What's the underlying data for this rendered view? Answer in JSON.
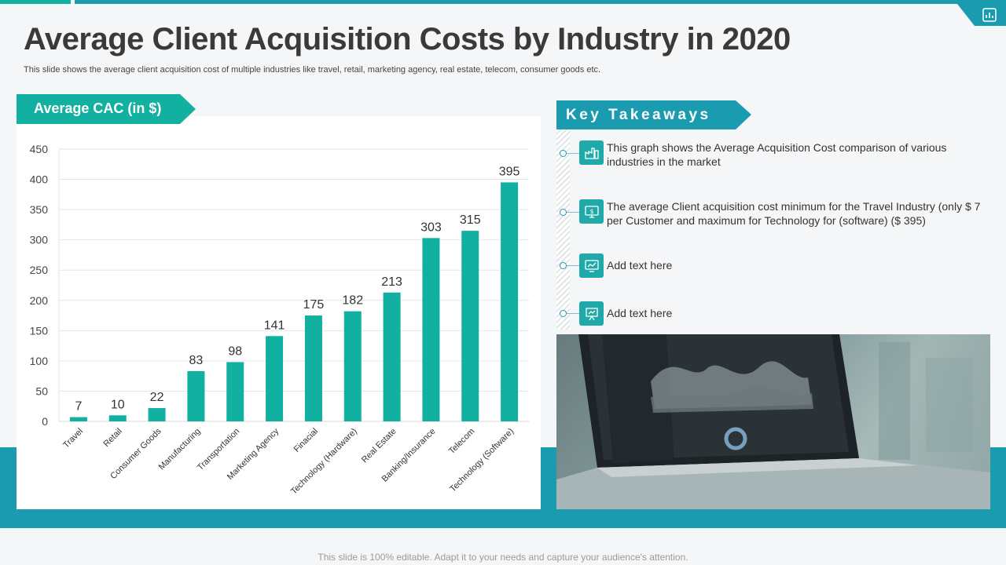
{
  "page": {
    "title": "Average Client Acquisition Costs by Industry in 2020",
    "subtitle": "This slide shows the average client acquisition cost of multiple industries like travel, retail, marketing agency, real estate, telecom, consumer goods etc.",
    "footer": "This slide is 100% editable. Adapt it to your needs and capture your audience's attention."
  },
  "chart_tag": "Average CAC (in $)",
  "chart_data": {
    "type": "bar",
    "categories": [
      "Travel",
      "Retail",
      "Consumer Goods",
      "Manufacturing",
      "Transportation",
      "Marketing Agency",
      "Finacial",
      "Technology (Hardware)",
      "Real Estate",
      "Banking/Insurance",
      "Telecom",
      "Technology (Software)"
    ],
    "values": [
      7,
      10,
      22,
      83,
      98,
      141,
      175,
      182,
      213,
      303,
      315,
      395
    ],
    "ylim": [
      0,
      450
    ],
    "yticks": [
      0,
      50,
      100,
      150,
      200,
      250,
      300,
      350,
      400,
      450
    ],
    "grid": true,
    "bar_color": "#12b0a0"
  },
  "takeaways": {
    "heading": "Key Takeaways",
    "items": [
      {
        "text": "This graph shows the Average Acquisition Cost comparison of various industries in the market",
        "icon": "industry-icon"
      },
      {
        "text": "The average Client acquisition cost minimum for the Travel Industry (only $ 7 per Customer and maximum for Technology for (software) ($ 395)",
        "icon": "monitor-dollar-icon"
      },
      {
        "text": "Add text here",
        "icon": "chart-monitor-icon"
      },
      {
        "text": "Add text here",
        "icon": "presentation-icon"
      }
    ]
  },
  "colors": {
    "teal": "#12b0a0",
    "blue": "#1a9bb0",
    "title": "#3a3a3a"
  }
}
